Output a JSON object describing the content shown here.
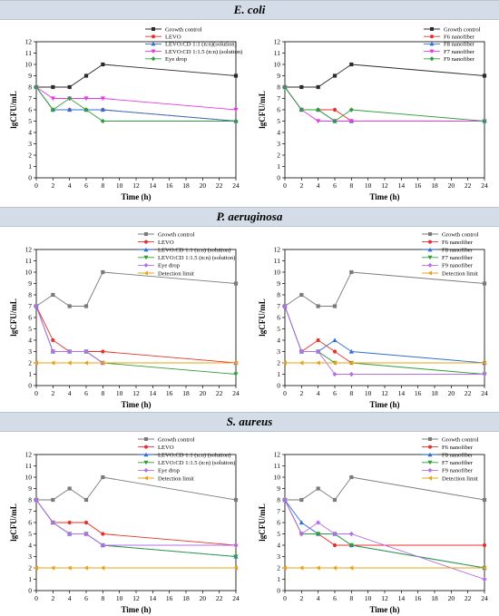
{
  "sections": [
    {
      "title": "E. coli"
    },
    {
      "title": "P. aeruginosa"
    },
    {
      "title": "S. aureus"
    }
  ],
  "chart_data": [
    {
      "type": "line",
      "section": "E. coli",
      "panel": "left",
      "x": [
        0,
        2,
        4,
        6,
        8,
        24
      ],
      "xticks": [
        0,
        2,
        4,
        6,
        8,
        10,
        12,
        14,
        16,
        18,
        20,
        22,
        24
      ],
      "yticks": [
        0,
        1,
        2,
        3,
        4,
        5,
        6,
        7,
        8,
        9,
        10,
        11,
        12
      ],
      "xlim": [
        0,
        24
      ],
      "ylim": [
        0,
        12
      ],
      "xlabel": "Time (h)",
      "ylabel": "lgCFU/mL",
      "grid": false,
      "legend": "top-center",
      "series": [
        {
          "name": "Growth control",
          "color": "#2b2b2b",
          "marker": "square",
          "values": [
            8,
            8,
            8,
            9,
            10,
            9
          ]
        },
        {
          "name": "LEVO",
          "color": "#e8302c",
          "marker": "circle",
          "values": [
            8,
            6,
            6,
            6,
            6,
            5
          ]
        },
        {
          "name": "LEVO:CD 1:1 (n:n)(solution)",
          "color": "#2e6fd6",
          "marker": "triangle-up",
          "values": [
            8,
            6,
            6,
            6,
            6,
            5
          ]
        },
        {
          "name": "LEVO:CD 1:1.5 (n:n) (solution)",
          "color": "#e838e8",
          "marker": "triangle-down",
          "values": [
            8,
            7,
            7,
            7,
            7,
            6
          ]
        },
        {
          "name": "Eye drop",
          "color": "#2f9e3a",
          "marker": "diamond",
          "values": [
            8,
            6,
            7,
            6,
            5,
            5
          ]
        }
      ]
    },
    {
      "type": "line",
      "section": "E. coli",
      "panel": "right",
      "x": [
        0,
        2,
        4,
        6,
        8,
        24
      ],
      "xticks": [
        0,
        2,
        4,
        6,
        8,
        10,
        12,
        14,
        16,
        18,
        20,
        22,
        24
      ],
      "yticks": [
        0,
        1,
        2,
        3,
        4,
        5,
        6,
        7,
        8,
        9,
        10,
        11,
        12
      ],
      "xlim": [
        0,
        24
      ],
      "ylim": [
        0,
        12
      ],
      "xlabel": "Time (h)",
      "ylabel": "lgCFU/mL",
      "grid": false,
      "legend": "top-right",
      "series": [
        {
          "name": "Growth control",
          "color": "#2b2b2b",
          "marker": "square",
          "values": [
            8,
            8,
            8,
            9,
            10,
            9
          ]
        },
        {
          "name": "F6 nanofiber",
          "color": "#e8302c",
          "marker": "circle",
          "values": [
            8,
            6,
            6,
            6,
            5,
            5
          ]
        },
        {
          "name": "F8 nanofiber",
          "color": "#2e6fd6",
          "marker": "triangle-up",
          "values": [
            8,
            6,
            6,
            5,
            5,
            5
          ]
        },
        {
          "name": "F7 nanofiber",
          "color": "#e838e8",
          "marker": "triangle-down",
          "values": [
            8,
            6,
            5,
            5,
            5,
            5
          ]
        },
        {
          "name": "F9 nanofiber",
          "color": "#2f9e3a",
          "marker": "diamond",
          "values": [
            8,
            6,
            6,
            5,
            6,
            5
          ]
        }
      ]
    },
    {
      "type": "line",
      "section": "P. aeruginosa",
      "panel": "left",
      "x": [
        0,
        2,
        4,
        6,
        8,
        24
      ],
      "xticks": [
        0,
        2,
        4,
        6,
        8,
        10,
        12,
        14,
        16,
        18,
        20,
        22,
        24
      ],
      "yticks": [
        0,
        1,
        2,
        3,
        4,
        5,
        6,
        7,
        8,
        9,
        10,
        11,
        12
      ],
      "xlim": [
        0,
        24
      ],
      "ylim": [
        0,
        12
      ],
      "xlabel": "Time (h)",
      "ylabel": "lgCFU/mL",
      "grid": false,
      "legend": "top-right",
      "series": [
        {
          "name": "Growth control",
          "color": "#7a7a7a",
          "marker": "square",
          "values": [
            7,
            8,
            7,
            7,
            10,
            9
          ]
        },
        {
          "name": "LEVO",
          "color": "#e8302c",
          "marker": "circle",
          "values": [
            7,
            4,
            3,
            3,
            3,
            2
          ]
        },
        {
          "name": "LEVO:CD 1:1 (n:n) (solution)",
          "color": "#2e6fd6",
          "marker": "triangle-up",
          "values": [
            7,
            3,
            3,
            3,
            2,
            2
          ]
        },
        {
          "name": "LEVO:CD 1:1.5 (n:n) (solution)",
          "color": "#2f9e3a",
          "marker": "triangle-down",
          "values": [
            7,
            3,
            3,
            3,
            2,
            1
          ]
        },
        {
          "name": "Eye drop",
          "color": "#b76ee8",
          "marker": "diamond",
          "values": [
            7,
            3,
            3,
            3,
            2,
            2
          ]
        },
        {
          "name": "Detection limit",
          "color": "#e8a317",
          "marker": "triangle-left",
          "values": [
            2,
            2,
            2,
            2,
            2,
            2
          ]
        }
      ]
    },
    {
      "type": "line",
      "section": "P. aeruginosa",
      "panel": "right",
      "x": [
        0,
        2,
        4,
        6,
        8,
        24
      ],
      "xticks": [
        0,
        2,
        4,
        6,
        8,
        10,
        12,
        14,
        16,
        18,
        20,
        22,
        24
      ],
      "yticks": [
        0,
        1,
        2,
        3,
        4,
        5,
        6,
        7,
        8,
        9,
        10,
        11,
        12
      ],
      "xlim": [
        0,
        24
      ],
      "ylim": [
        0,
        12
      ],
      "xlabel": "Time (h)",
      "ylabel": "lgCFU/mL",
      "grid": false,
      "legend": "top-right",
      "series": [
        {
          "name": "Growth control",
          "color": "#7a7a7a",
          "marker": "square",
          "values": [
            7,
            8,
            7,
            7,
            10,
            9
          ]
        },
        {
          "name": "F6 nanofiber",
          "color": "#e8302c",
          "marker": "circle",
          "values": [
            7,
            3,
            4,
            3,
            2,
            2
          ]
        },
        {
          "name": "F8 nanofiber",
          "color": "#2e6fd6",
          "marker": "triangle-up",
          "values": [
            7,
            3,
            3,
            4,
            3,
            2
          ]
        },
        {
          "name": "F7 nanofiber",
          "color": "#2f9e3a",
          "marker": "triangle-down",
          "values": [
            7,
            3,
            3,
            2,
            2,
            1
          ]
        },
        {
          "name": "F9 nanofiber",
          "color": "#b76ee8",
          "marker": "diamond",
          "values": [
            7,
            3,
            3,
            1,
            1,
            1
          ]
        },
        {
          "name": "Detection limit",
          "color": "#e8a317",
          "marker": "triangle-left",
          "values": [
            2,
            2,
            2,
            2,
            2,
            2
          ]
        }
      ]
    },
    {
      "type": "line",
      "section": "S. aureus",
      "panel": "left",
      "x": [
        0,
        2,
        4,
        6,
        8,
        24
      ],
      "xticks": [
        0,
        2,
        4,
        6,
        8,
        10,
        12,
        14,
        16,
        18,
        20,
        22,
        24
      ],
      "yticks": [
        0,
        1,
        2,
        3,
        4,
        5,
        6,
        7,
        8,
        9,
        10,
        11,
        12
      ],
      "xlim": [
        0,
        24
      ],
      "ylim": [
        0,
        12
      ],
      "xlabel": "Time (h)",
      "ylabel": "lgCFU/mL",
      "grid": false,
      "legend": "top-right",
      "series": [
        {
          "name": "Growth control",
          "color": "#7a7a7a",
          "marker": "square",
          "values": [
            8,
            8,
            9,
            8,
            10,
            8
          ]
        },
        {
          "name": "LEVO",
          "color": "#e8302c",
          "marker": "circle",
          "values": [
            8,
            6,
            6,
            6,
            5,
            4
          ]
        },
        {
          "name": "LEVO:CD 1:1 (n:n) (solution)",
          "color": "#2e6fd6",
          "marker": "triangle-up",
          "values": [
            8,
            6,
            5,
            5,
            4,
            3
          ]
        },
        {
          "name": "LEVO:CD 1:1.5 (n:n) (solution)",
          "color": "#2f9e3a",
          "marker": "triangle-down",
          "values": [
            8,
            6,
            5,
            5,
            4,
            3
          ]
        },
        {
          "name": "Eye drop",
          "color": "#b76ee8",
          "marker": "diamond",
          "values": [
            8,
            6,
            5,
            5,
            4,
            4
          ]
        },
        {
          "name": "Detection limit",
          "color": "#e8a317",
          "marker": "triangle-left",
          "values": [
            2,
            2,
            2,
            2,
            2,
            2
          ]
        }
      ]
    },
    {
      "type": "line",
      "section": "S. aureus",
      "panel": "right",
      "x": [
        0,
        2,
        4,
        6,
        8,
        24
      ],
      "xticks": [
        0,
        2,
        4,
        6,
        8,
        10,
        12,
        14,
        16,
        18,
        20,
        22,
        24
      ],
      "yticks": [
        0,
        1,
        2,
        3,
        4,
        5,
        6,
        7,
        8,
        9,
        10,
        11,
        12
      ],
      "xlim": [
        0,
        24
      ],
      "ylim": [
        0,
        12
      ],
      "xlabel": "Time (h)",
      "ylabel": "lgCFU/mL",
      "grid": false,
      "legend": "top-right",
      "series": [
        {
          "name": "Growth control",
          "color": "#7a7a7a",
          "marker": "square",
          "values": [
            8,
            8,
            9,
            8,
            10,
            8
          ]
        },
        {
          "name": "F6 nanofiber",
          "color": "#e8302c",
          "marker": "circle",
          "values": [
            8,
            5,
            5,
            4,
            4,
            4
          ]
        },
        {
          "name": "F8 nanofiber",
          "color": "#2e6fd6",
          "marker": "triangle-up",
          "values": [
            8,
            6,
            5,
            5,
            4,
            2
          ]
        },
        {
          "name": "F7 nanofiber",
          "color": "#2f9e3a",
          "marker": "triangle-down",
          "values": [
            8,
            5,
            5,
            5,
            4,
            2
          ]
        },
        {
          "name": "F9 nanofiber",
          "color": "#b76ee8",
          "marker": "diamond",
          "values": [
            8,
            5,
            6,
            5,
            5,
            1
          ]
        },
        {
          "name": "Detection limit",
          "color": "#e8a317",
          "marker": "triangle-left",
          "values": [
            2,
            2,
            2,
            2,
            2,
            2
          ]
        }
      ]
    }
  ]
}
